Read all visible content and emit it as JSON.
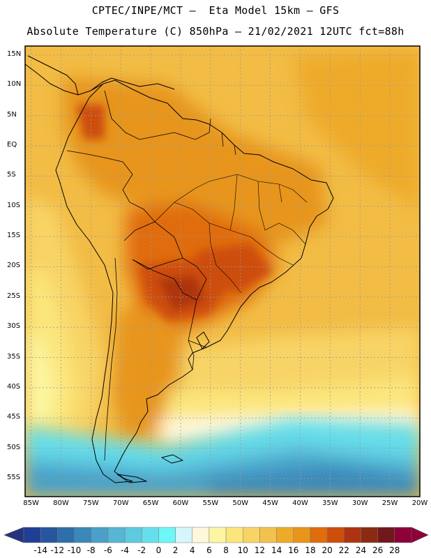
{
  "header": {
    "line1": "CPTEC/INPE/MCT –  Eta Model 15km – GFS",
    "line2": "Absolute Temperature (C) 850hPa – 21/02/2021 12UTC fct=88h"
  },
  "map": {
    "lat_labels": [
      "15N",
      "10N",
      "5N",
      "EQ",
      "5S",
      "10S",
      "15S",
      "20S",
      "25S",
      "30S",
      "35S",
      "40S",
      "45S",
      "50S",
      "55S"
    ],
    "lat_values": [
      15,
      10,
      5,
      0,
      -5,
      -10,
      -15,
      -20,
      -25,
      -30,
      -35,
      -40,
      -45,
      -50,
      -55
    ],
    "lon_labels": [
      "85W",
      "80W",
      "75W",
      "70W",
      "65W",
      "60W",
      "55W",
      "50W",
      "45W",
      "40W",
      "35W",
      "30W",
      "25W",
      "20W"
    ],
    "lon_values": [
      -85,
      -80,
      -75,
      -70,
      -65,
      -60,
      -55,
      -50,
      -45,
      -40,
      -35,
      -30,
      -25,
      -20
    ],
    "lat_range": [
      -58,
      16.5
    ],
    "lon_range": [
      -86,
      -20
    ]
  },
  "colorbar": {
    "labels": [
      "-14",
      "-12",
      "-10",
      "-8",
      "-6",
      "-4",
      "-2",
      "0",
      "2",
      "4",
      "6",
      "8",
      "10",
      "12",
      "14",
      "16",
      "18",
      "20",
      "22",
      "24",
      "26",
      "28"
    ],
    "colors": [
      "#1f3f94",
      "#27569f",
      "#2e6eaa",
      "#3a88b9",
      "#4aa0c8",
      "#56b6d4",
      "#5ecae0",
      "#66dfec",
      "#6ef7f7",
      "#d6f6fb",
      "#fff7dc",
      "#fcf6a2",
      "#fbe67b",
      "#f8d466",
      "#f3c14d",
      "#eeab2a",
      "#e7951b",
      "#e06c0c",
      "#cd4e0a",
      "#ad3410",
      "#8a2a13",
      "#71181c",
      "#8d0038"
    ],
    "left_arrow_color": "#27327e",
    "right_arrow_color": "#8d0038"
  }
}
